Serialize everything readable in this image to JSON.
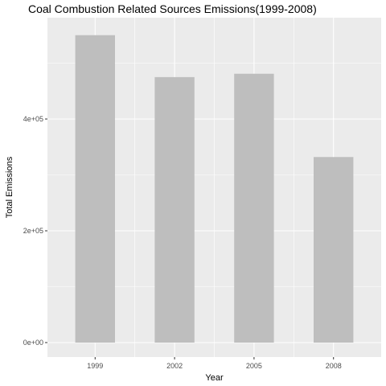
{
  "chart_data": {
    "type": "bar",
    "title": "Coal Combustion Related Sources Emissions(1999-2008)",
    "xlabel": "Year",
    "ylabel": "Total Emissions",
    "categories": [
      "1999",
      "2002",
      "2005",
      "2008"
    ],
    "values": [
      550000,
      475000,
      481000,
      332000
    ],
    "ylim": [
      0,
      575000
    ],
    "yticks": [
      0,
      200000,
      400000
    ],
    "ytick_labels": [
      "0e+00",
      "2e+05",
      "4e+05"
    ],
    "grid": true,
    "colors": {
      "bar": "#bebebe",
      "panel": "#ebebeb",
      "grid": "#ffffff"
    }
  }
}
